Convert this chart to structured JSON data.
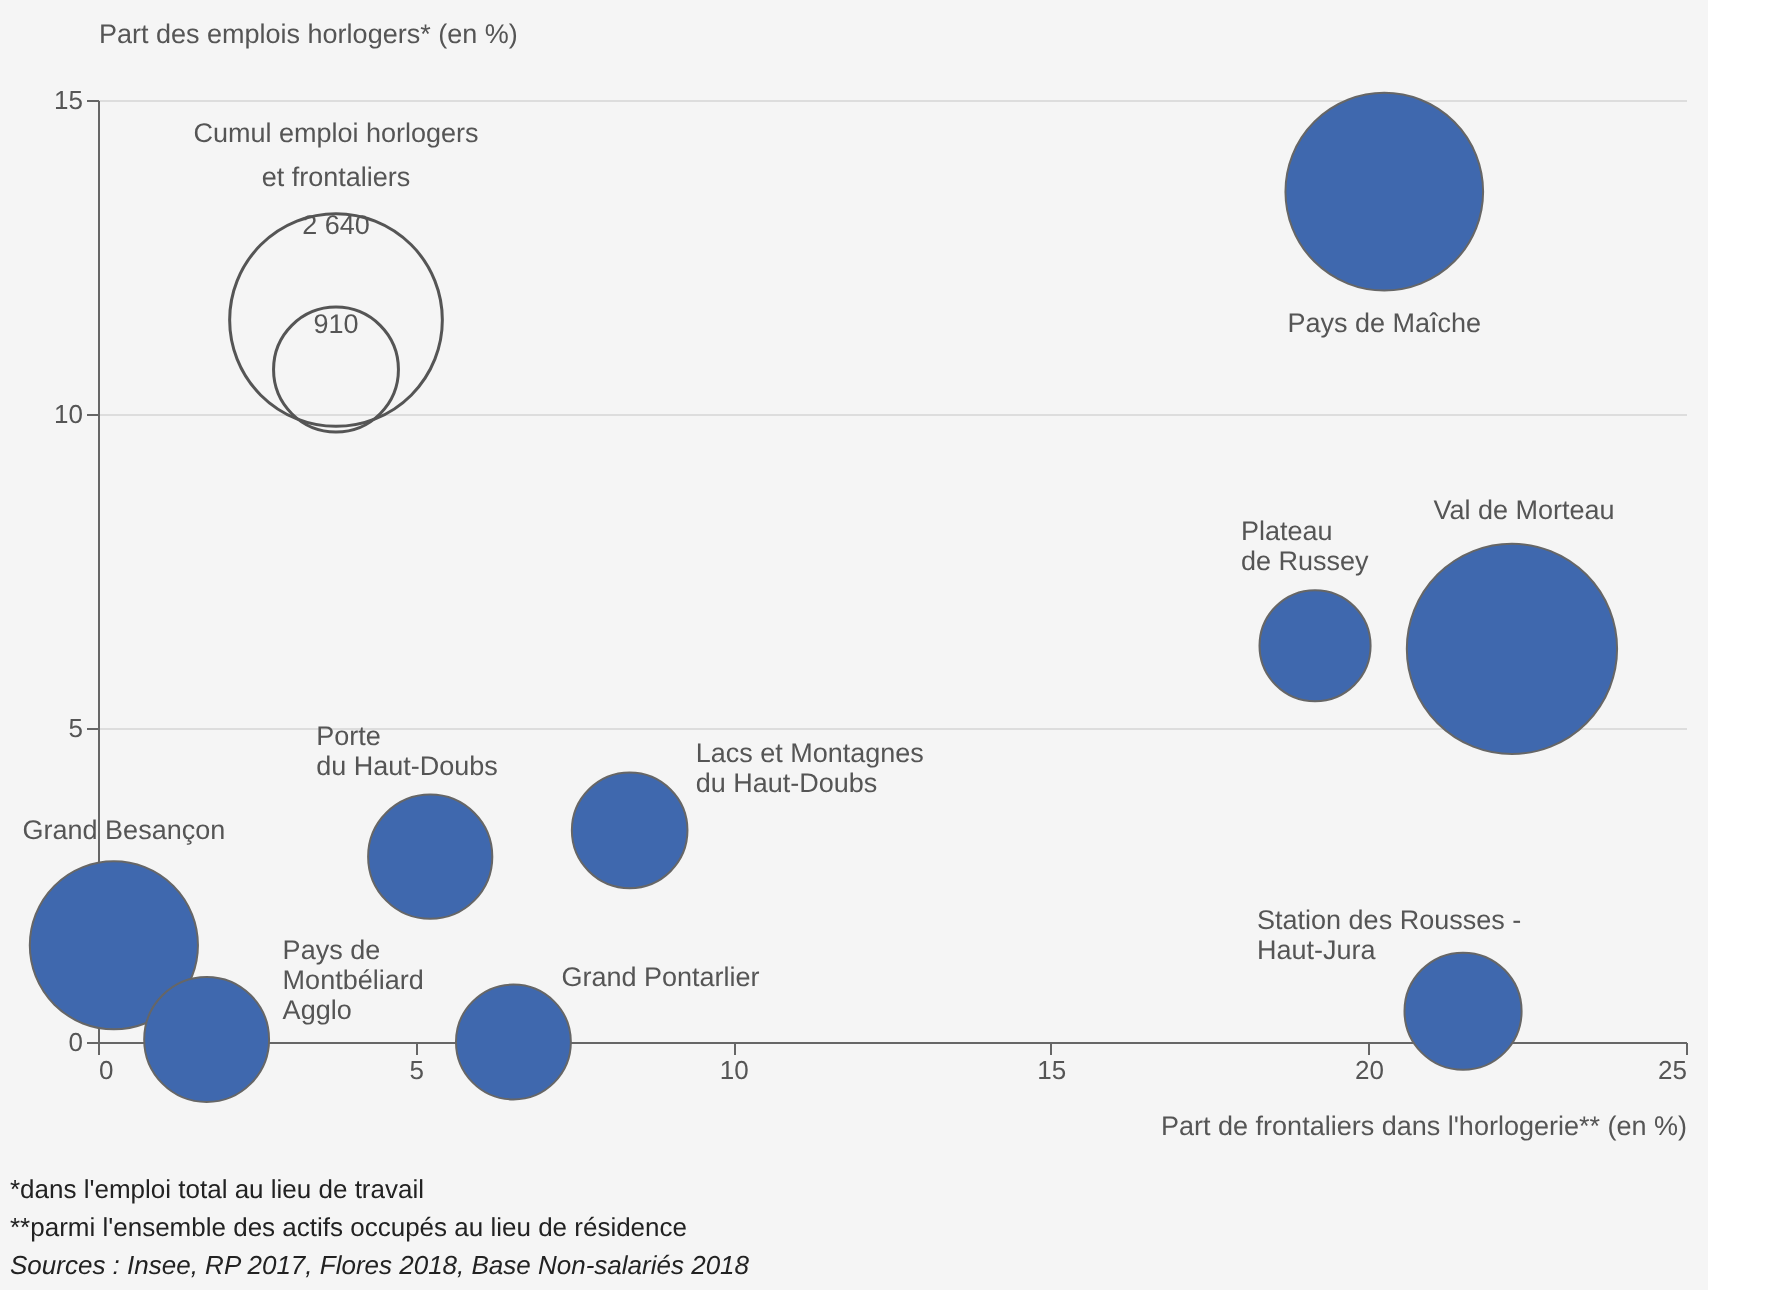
{
  "chart_data": {
    "type": "bubble",
    "xlabel": "Part de frontaliers dans l'horlogerie** (en %)",
    "ylabel": "Part des emplois horlogers* (en %)",
    "legend_title": "Cumul emploi horlogers\net frontaliers",
    "size_legend": [
      910,
      {
        "value": 2640,
        "label": "2 640"
      }
    ],
    "xlim": [
      0,
      25
    ],
    "xticks": [
      0,
      5,
      10,
      15,
      20,
      25
    ],
    "ylim": [
      0,
      15
    ],
    "yticks": [
      0,
      5,
      10,
      15
    ],
    "grid": "y",
    "series": [
      {
        "name": "Pays de Maîche",
        "color": "#3f68ae",
        "x": [
          20.25
        ],
        "values": [
          13.54
        ],
        "sizes": [
          2280
        ]
      },
      {
        "name": "Val de Morteau",
        "color": "#3f68ae",
        "x": [
          22.26
        ],
        "values": [
          6.26
        ],
        "sizes": [
          2580
        ]
      },
      {
        "name": "Plateau\nde Russey",
        "color": "#3f68ae",
        "x": [
          19.16
        ],
        "values": [
          6.31
        ],
        "sizes": [
          720
        ]
      },
      {
        "name": "Station des Rousses -\nHaut-Jura",
        "color": "#3f68ae",
        "x": [
          21.49
        ],
        "values": [
          0.49
        ],
        "sizes": [
          800
        ]
      },
      {
        "name": "Lacs et Montagnes\ndu Haut-Doubs",
        "color": "#3f68ae",
        "x": [
          8.37
        ],
        "values": [
          3.37
        ],
        "sizes": [
          780
        ]
      },
      {
        "name": "Porte\ndu Haut-Doubs",
        "color": "#3f68ae",
        "x": [
          5.23
        ],
        "values": [
          2.95
        ],
        "sizes": [
          900
        ]
      },
      {
        "name": "Grand Besançon",
        "color": "#3f68ae",
        "x": [
          0.25
        ],
        "values": [
          1.54
        ],
        "sizes": [
          1650
        ]
      },
      {
        "name": "Pays de\nMontbéliard\nAgglo",
        "color": "#3f68ae",
        "x": [
          1.71
        ],
        "values": [
          0.04
        ],
        "sizes": [
          910
        ]
      },
      {
        "name": "Grand Pontarlier",
        "color": "#3f68ae",
        "x": [
          6.54
        ],
        "values": [
          0.0
        ],
        "sizes": [
          770
        ]
      }
    ],
    "annotations": [
      "*dans l'emploi total au lieu de travail",
      "**parmi l'ensemble des actifs occupés au lieu de résidence",
      "Sources : Insee, RP 2017, Flores 2018, Base Non-salariés 2018"
    ]
  }
}
